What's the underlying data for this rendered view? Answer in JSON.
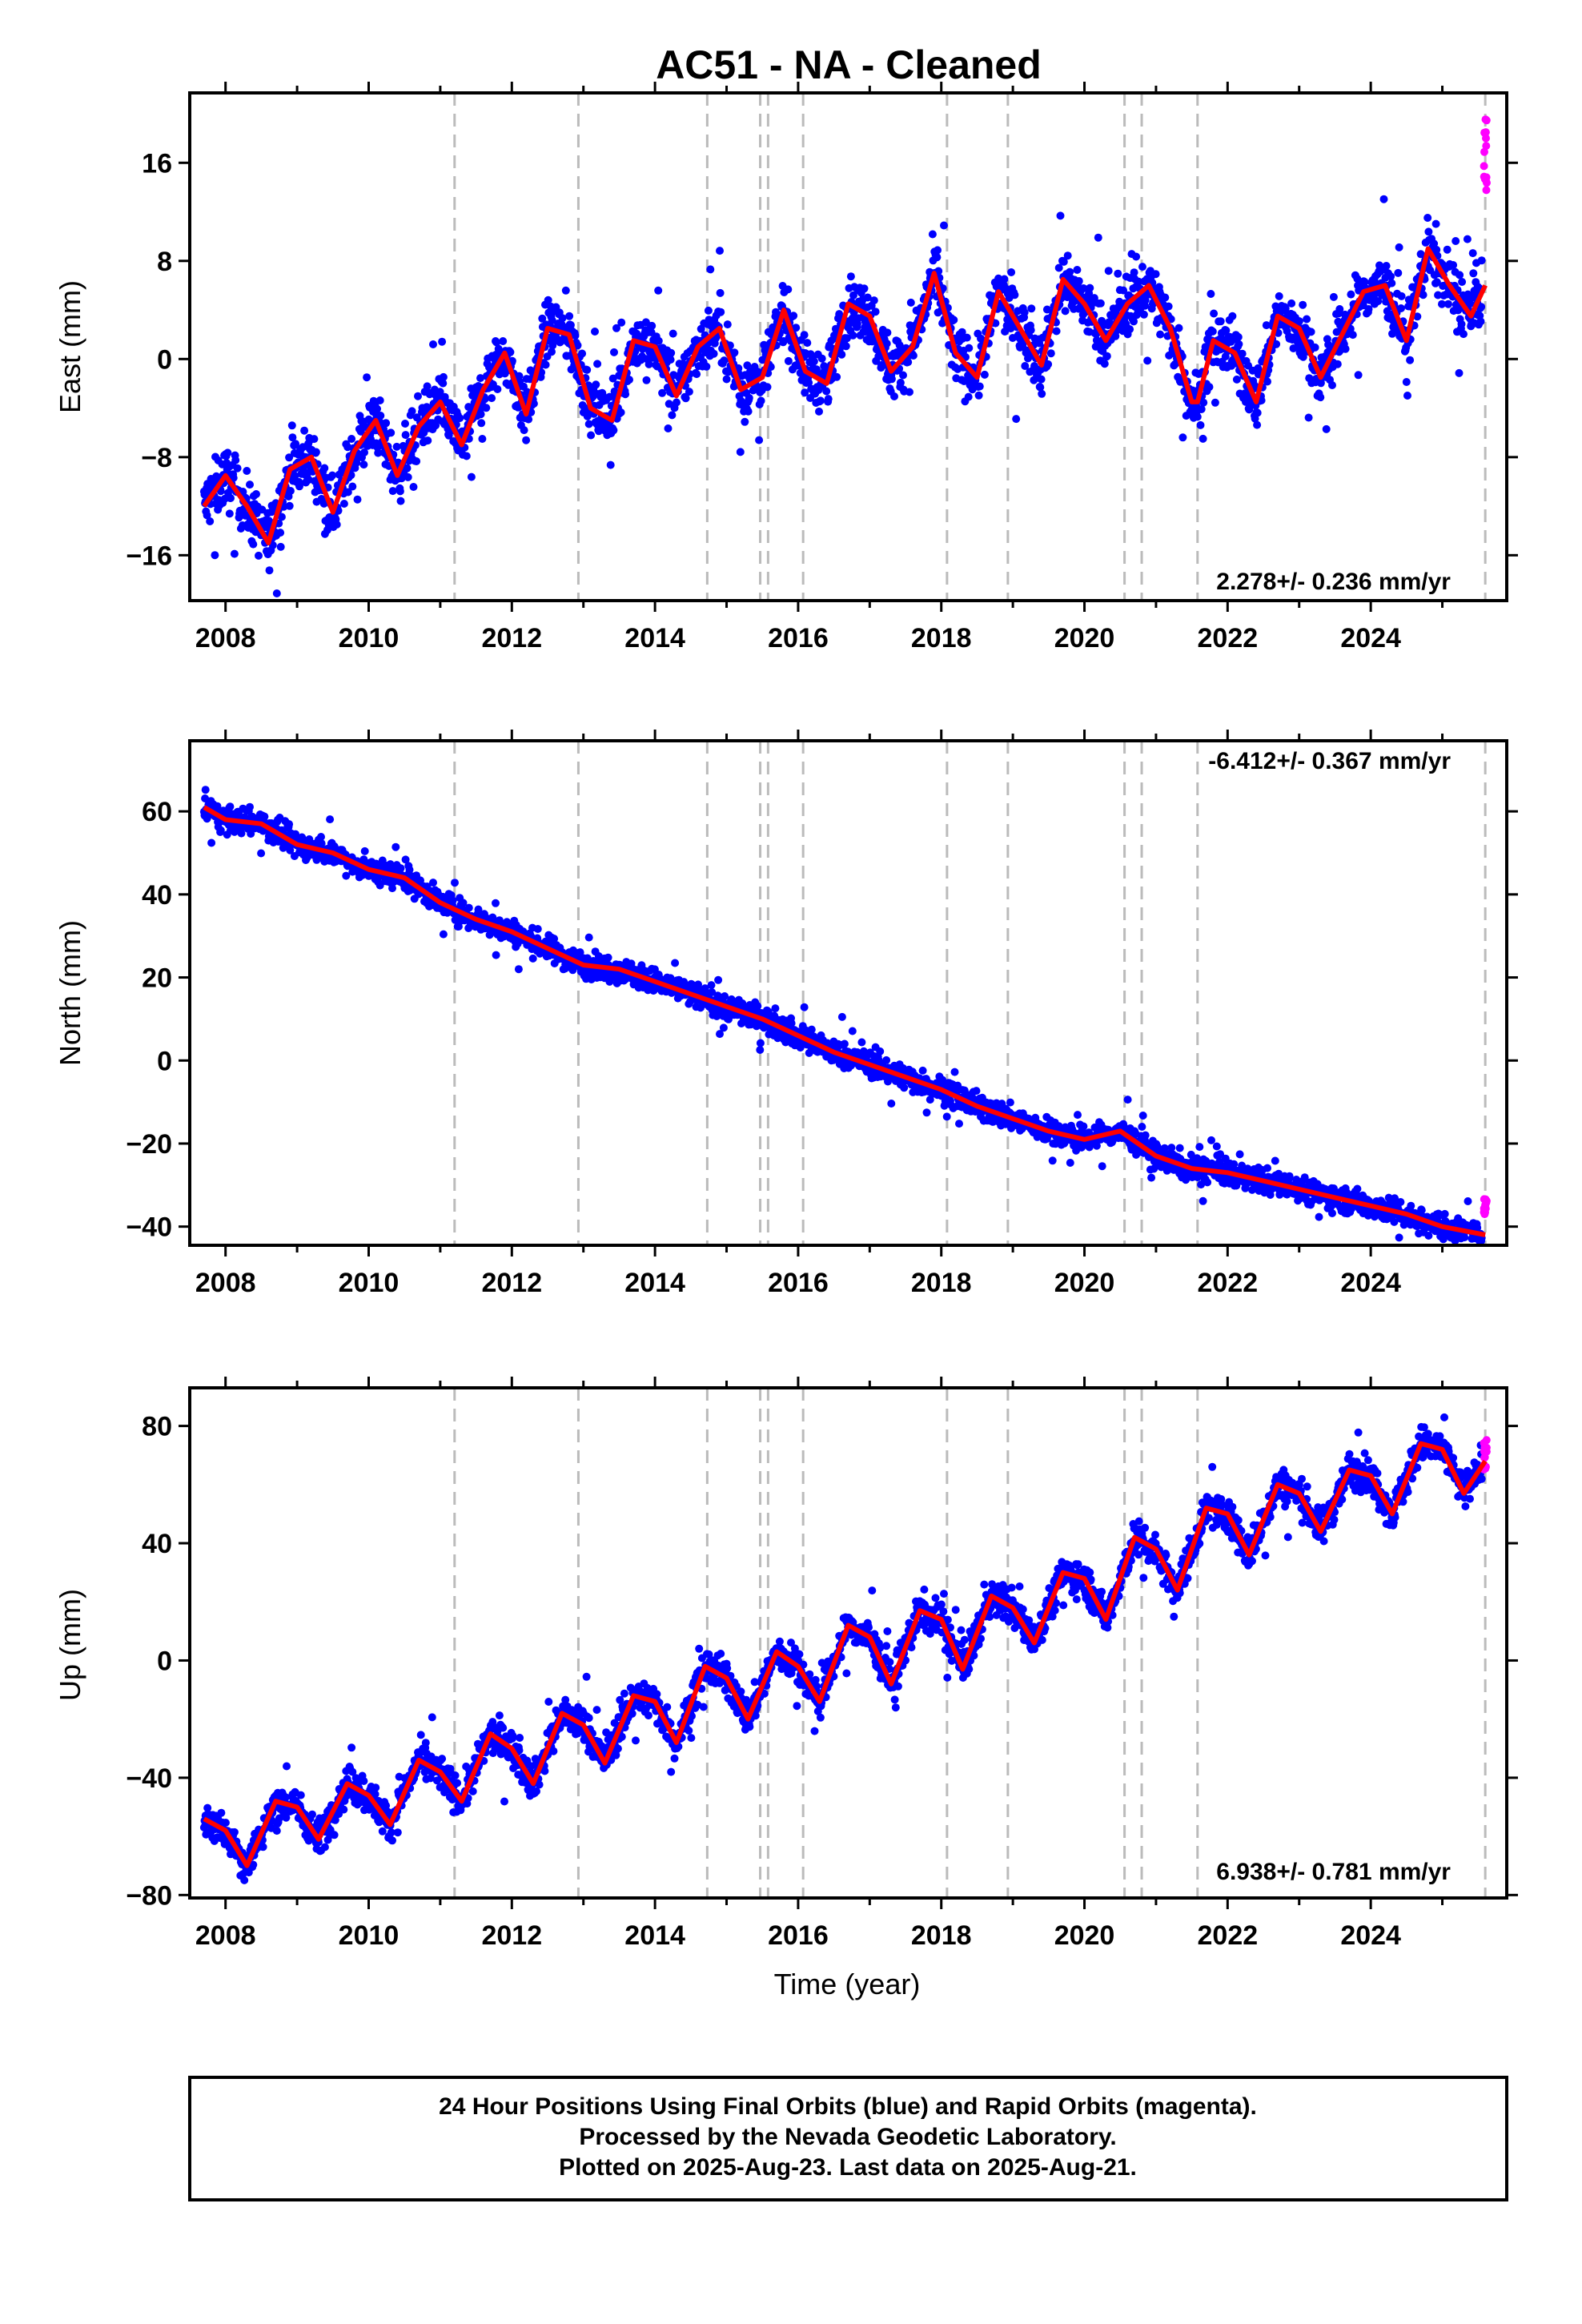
{
  "title": "AC51  - NA - Cleaned",
  "colors": {
    "final_orbits": "#0000ff",
    "rapid_orbits": "#ff00ff",
    "model_fit": "#ff0000",
    "events": "#bbbbbb",
    "frame": "#000000"
  },
  "x_axis": {
    "label": "Time (year)",
    "range": [
      2007.5,
      2025.9
    ],
    "ticks": [
      2008,
      2010,
      2012,
      2014,
      2016,
      2018,
      2020,
      2022,
      2024
    ],
    "tick_labels": [
      "2008",
      "2010",
      "2012",
      "2014",
      "2016",
      "2018",
      "2020",
      "2022",
      "2024"
    ]
  },
  "event_lines_year": [
    2011.2,
    2012.93,
    2014.73,
    2015.47,
    2015.58,
    2016.07,
    2018.08,
    2018.93,
    2020.56,
    2020.8,
    2021.58,
    2025.6
  ],
  "chart_data": [
    {
      "type": "scatter",
      "component": "East",
      "ylabel": "East (mm)",
      "ylim": [
        -19.7,
        21.7
      ],
      "y_ticks": [
        -16,
        -8,
        0,
        8,
        16
      ],
      "y_tick_labels": [
        "−16",
        "−8",
        "0",
        "8",
        "16"
      ],
      "rate_text": "2.278+/- 0.236 mm/yr",
      "rate_position": "bottom-right",
      "series": [
        {
          "name": "Final Orbits",
          "color": "blue",
          "trend": [
            [
              2007.7,
              -11.5
            ],
            [
              2025.5,
              9.5
            ]
          ],
          "seasonal_amp": 4.0,
          "noise": 2.0,
          "breaks": [
            [
              2021.58,
              1.8
            ],
            [
              2023.4,
              -2.0
            ],
            [
              2024.7,
              2.8
            ]
          ]
        },
        {
          "name": "Rapid Orbits",
          "color": "magenta",
          "x": [
            2025.58,
            2025.62
          ],
          "y": [
            13,
            21
          ]
        }
      ],
      "model": {
        "name": "fit",
        "color": "red",
        "x": [
          2007.7,
          2008.0,
          2008.3,
          2008.6,
          2008.9,
          2009.2,
          2009.5,
          2009.8,
          2010.1,
          2010.4,
          2010.7,
          2011.0,
          2011.3,
          2011.6,
          2011.9,
          2012.2,
          2012.5,
          2012.8,
          2013.1,
          2013.4,
          2013.7,
          2014.0,
          2014.3,
          2014.6,
          2014.9,
          2015.2,
          2015.5,
          2015.8,
          2016.1,
          2016.4,
          2016.7,
          2017.0,
          2017.3,
          2017.6,
          2017.9,
          2018.2,
          2018.5,
          2018.8,
          2019.1,
          2019.4,
          2019.7,
          2020.0,
          2020.3,
          2020.6,
          2020.9,
          2021.2,
          2021.5,
          2021.58,
          2021.8,
          2022.1,
          2022.4,
          2022.7,
          2023.0,
          2023.3,
          2023.6,
          2023.9,
          2024.2,
          2024.5,
          2024.8,
          2025.1,
          2025.4,
          2025.6
        ],
        "y": [
          -12.0,
          -9.5,
          -12.0,
          -15.0,
          -9.0,
          -8.0,
          -12.5,
          -7.5,
          -5.0,
          -9.5,
          -5.5,
          -3.5,
          -7.0,
          -2.5,
          0.5,
          -4.5,
          2.5,
          2.0,
          -4.0,
          -5.0,
          1.5,
          1.0,
          -3.0,
          1.0,
          2.5,
          -2.5,
          -1.5,
          4.0,
          -1.0,
          -2.0,
          4.5,
          3.5,
          -1.0,
          1.0,
          7.0,
          0.5,
          -1.5,
          5.5,
          2.5,
          -0.5,
          6.5,
          4.5,
          1.5,
          4.5,
          6.0,
          2.5,
          -3.5,
          -3.5,
          1.5,
          0.5,
          -3.5,
          3.5,
          2.5,
          -1.5,
          2.0,
          5.5,
          6.0,
          1.5,
          9.0,
          6.0,
          3.5,
          6.0
        ]
      },
      "trace": "a"
    },
    {
      "type": "scatter",
      "component": "North",
      "ylabel": "North (mm)",
      "ylim": [
        -44.5,
        77
      ],
      "y_ticks": [
        -40,
        -20,
        0,
        20,
        40,
        60
      ],
      "y_tick_labels": [
        "−40",
        "−20",
        "0",
        "20",
        "40",
        "60"
      ],
      "rate_text": "-6.412+/- 0.367 mm/yr",
      "rate_position": "top-right",
      "series": [
        {
          "name": "Final Orbits",
          "color": "blue",
          "trend": [
            [
              2007.7,
              61
            ],
            [
              2025.5,
              -40
            ]
          ],
          "seasonal_amp": 2.0,
          "noise": 2.5
        },
        {
          "name": "Rapid Orbits",
          "color": "magenta",
          "x": [
            2025.58,
            2025.62
          ],
          "y": [
            -37,
            -33
          ]
        }
      ],
      "model": {
        "name": "fit",
        "color": "red",
        "x": [
          2007.7,
          2008.0,
          2008.5,
          2009.0,
          2009.5,
          2010.0,
          2010.5,
          2011.0,
          2011.5,
          2012.0,
          2012.5,
          2013.0,
          2013.5,
          2014.0,
          2014.5,
          2015.0,
          2015.5,
          2016.0,
          2016.5,
          2017.0,
          2017.5,
          2018.0,
          2018.5,
          2019.0,
          2019.5,
          2020.0,
          2020.5,
          2021.0,
          2021.5,
          2022.0,
          2022.5,
          2023.0,
          2023.5,
          2024.0,
          2024.5,
          2025.0,
          2025.6
        ],
        "y": [
          61,
          58,
          57,
          52,
          50,
          46,
          44,
          38,
          34,
          31,
          27,
          23,
          22,
          19,
          16,
          13,
          10,
          6,
          2,
          -1,
          -4,
          -7,
          -11,
          -14,
          -17,
          -19,
          -17,
          -23,
          -26,
          -27,
          -29,
          -31,
          -33,
          -35,
          -37,
          -40,
          -42
        ]
      },
      "trace": "a"
    },
    {
      "type": "scatter",
      "component": "Up",
      "ylabel": "Up (mm)",
      "ylim": [
        -81,
        93
      ],
      "y_ticks": [
        -80,
        -40,
        0,
        40,
        80
      ],
      "y_tick_labels": [
        "−80",
        "−40",
        "0",
        "40",
        "80"
      ],
      "rate_text": "6.938+/- 0.781 mm/yr",
      "rate_position": "bottom-right",
      "series": [
        {
          "name": "Final Orbits",
          "color": "blue",
          "trend": [
            [
              2007.7,
              -58
            ],
            [
              2025.5,
              66
            ]
          ],
          "seasonal_amp": 8.0,
          "noise": 5.0
        },
        {
          "name": "Rapid Orbits",
          "color": "magenta",
          "x": [
            2025.58,
            2025.62
          ],
          "y": [
            65,
            78
          ]
        }
      ],
      "model": {
        "name": "fit",
        "color": "red",
        "x": [
          2007.7,
          2008.0,
          2008.3,
          2008.7,
          2009.0,
          2009.3,
          2009.7,
          2010.0,
          2010.3,
          2010.7,
          2011.0,
          2011.3,
          2011.7,
          2012.0,
          2012.3,
          2012.7,
          2013.0,
          2013.3,
          2013.7,
          2014.0,
          2014.3,
          2014.7,
          2015.0,
          2015.3,
          2015.7,
          2016.0,
          2016.3,
          2016.7,
          2017.0,
          2017.3,
          2017.7,
          2018.0,
          2018.3,
          2018.7,
          2019.0,
          2019.3,
          2019.7,
          2020.0,
          2020.3,
          2020.7,
          2021.0,
          2021.3,
          2021.7,
          2022.0,
          2022.3,
          2022.7,
          2023.0,
          2023.3,
          2023.7,
          2024.0,
          2024.3,
          2024.7,
          2025.0,
          2025.3,
          2025.6
        ],
        "y": [
          -54,
          -58,
          -70,
          -48,
          -50,
          -61,
          -42,
          -46,
          -56,
          -34,
          -38,
          -48,
          -25,
          -30,
          -42,
          -18,
          -22,
          -35,
          -12,
          -14,
          -28,
          -2,
          -6,
          -20,
          3,
          -2,
          -14,
          12,
          8,
          -8,
          17,
          14,
          -3,
          22,
          18,
          6,
          30,
          28,
          14,
          42,
          38,
          24,
          52,
          50,
          36,
          60,
          57,
          44,
          65,
          63,
          50,
          74,
          72,
          57,
          68
        ]
      },
      "trace": "a"
    }
  ],
  "footer": {
    "line1": "24 Hour Positions Using Final Orbits (blue) and Rapid Orbits (magenta).",
    "line2": "Processed by the Nevada Geodetic Laboratory.",
    "line3": "Plotted on 2025-Aug-23. Last data on 2025-Aug-21."
  }
}
